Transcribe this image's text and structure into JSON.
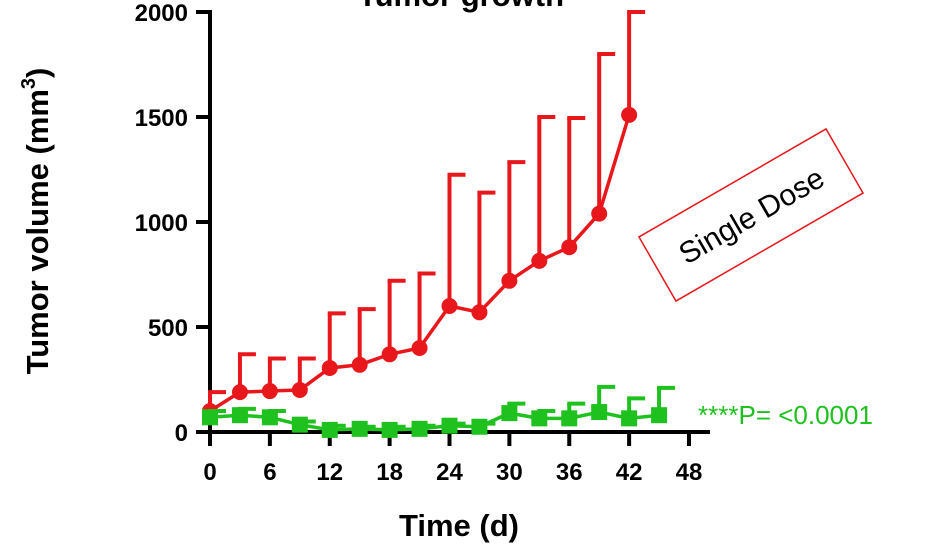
{
  "chart_data": {
    "type": "line",
    "title": "Tumor growth",
    "xlabel": "Time (d)",
    "ylabel": "Tumor volume (mm",
    "ylabel_superscript": "3",
    "ylabel_suffix": ")",
    "xlim": [
      0,
      48
    ],
    "ylim": [
      0,
      2000
    ],
    "xticks": [
      "0",
      "6",
      "12",
      "18",
      "24",
      "30",
      "36",
      "42",
      "48"
    ],
    "yticks": [
      "0",
      "500",
      "1000",
      "1500",
      "2000"
    ],
    "grid": false,
    "series": [
      {
        "color": "#e8171b",
        "marker": "circle",
        "x": [
          0,
          3,
          6,
          9,
          12,
          15,
          18,
          21,
          24,
          27,
          30,
          33,
          36,
          39,
          42
        ],
        "y": [
          100,
          190,
          195,
          200,
          305,
          320,
          370,
          400,
          600,
          570,
          720,
          815,
          880,
          1040,
          1510
        ],
        "error_upper": [
          190,
          370,
          350,
          350,
          565,
          585,
          720,
          755,
          1225,
          1140,
          1285,
          1500,
          1495,
          1800,
          2000
        ]
      },
      {
        "color": "#1fc11f",
        "marker": "square",
        "x": [
          0,
          3,
          6,
          9,
          12,
          15,
          18,
          21,
          24,
          27,
          30,
          33,
          36,
          39,
          42,
          45
        ],
        "y": [
          70,
          80,
          70,
          35,
          10,
          15,
          10,
          15,
          30,
          25,
          90,
          65,
          65,
          95,
          65,
          80
        ],
        "error_upper": [
          100,
          110,
          100,
          50,
          30,
          25,
          25,
          30,
          40,
          40,
          135,
          100,
          135,
          215,
          160,
          210
        ]
      }
    ],
    "annotations": {
      "note": "Single Dose",
      "note_color": "#e8171b",
      "pvalue": "****P= <0.0001",
      "pvalue_color": "#1fc11f"
    }
  }
}
